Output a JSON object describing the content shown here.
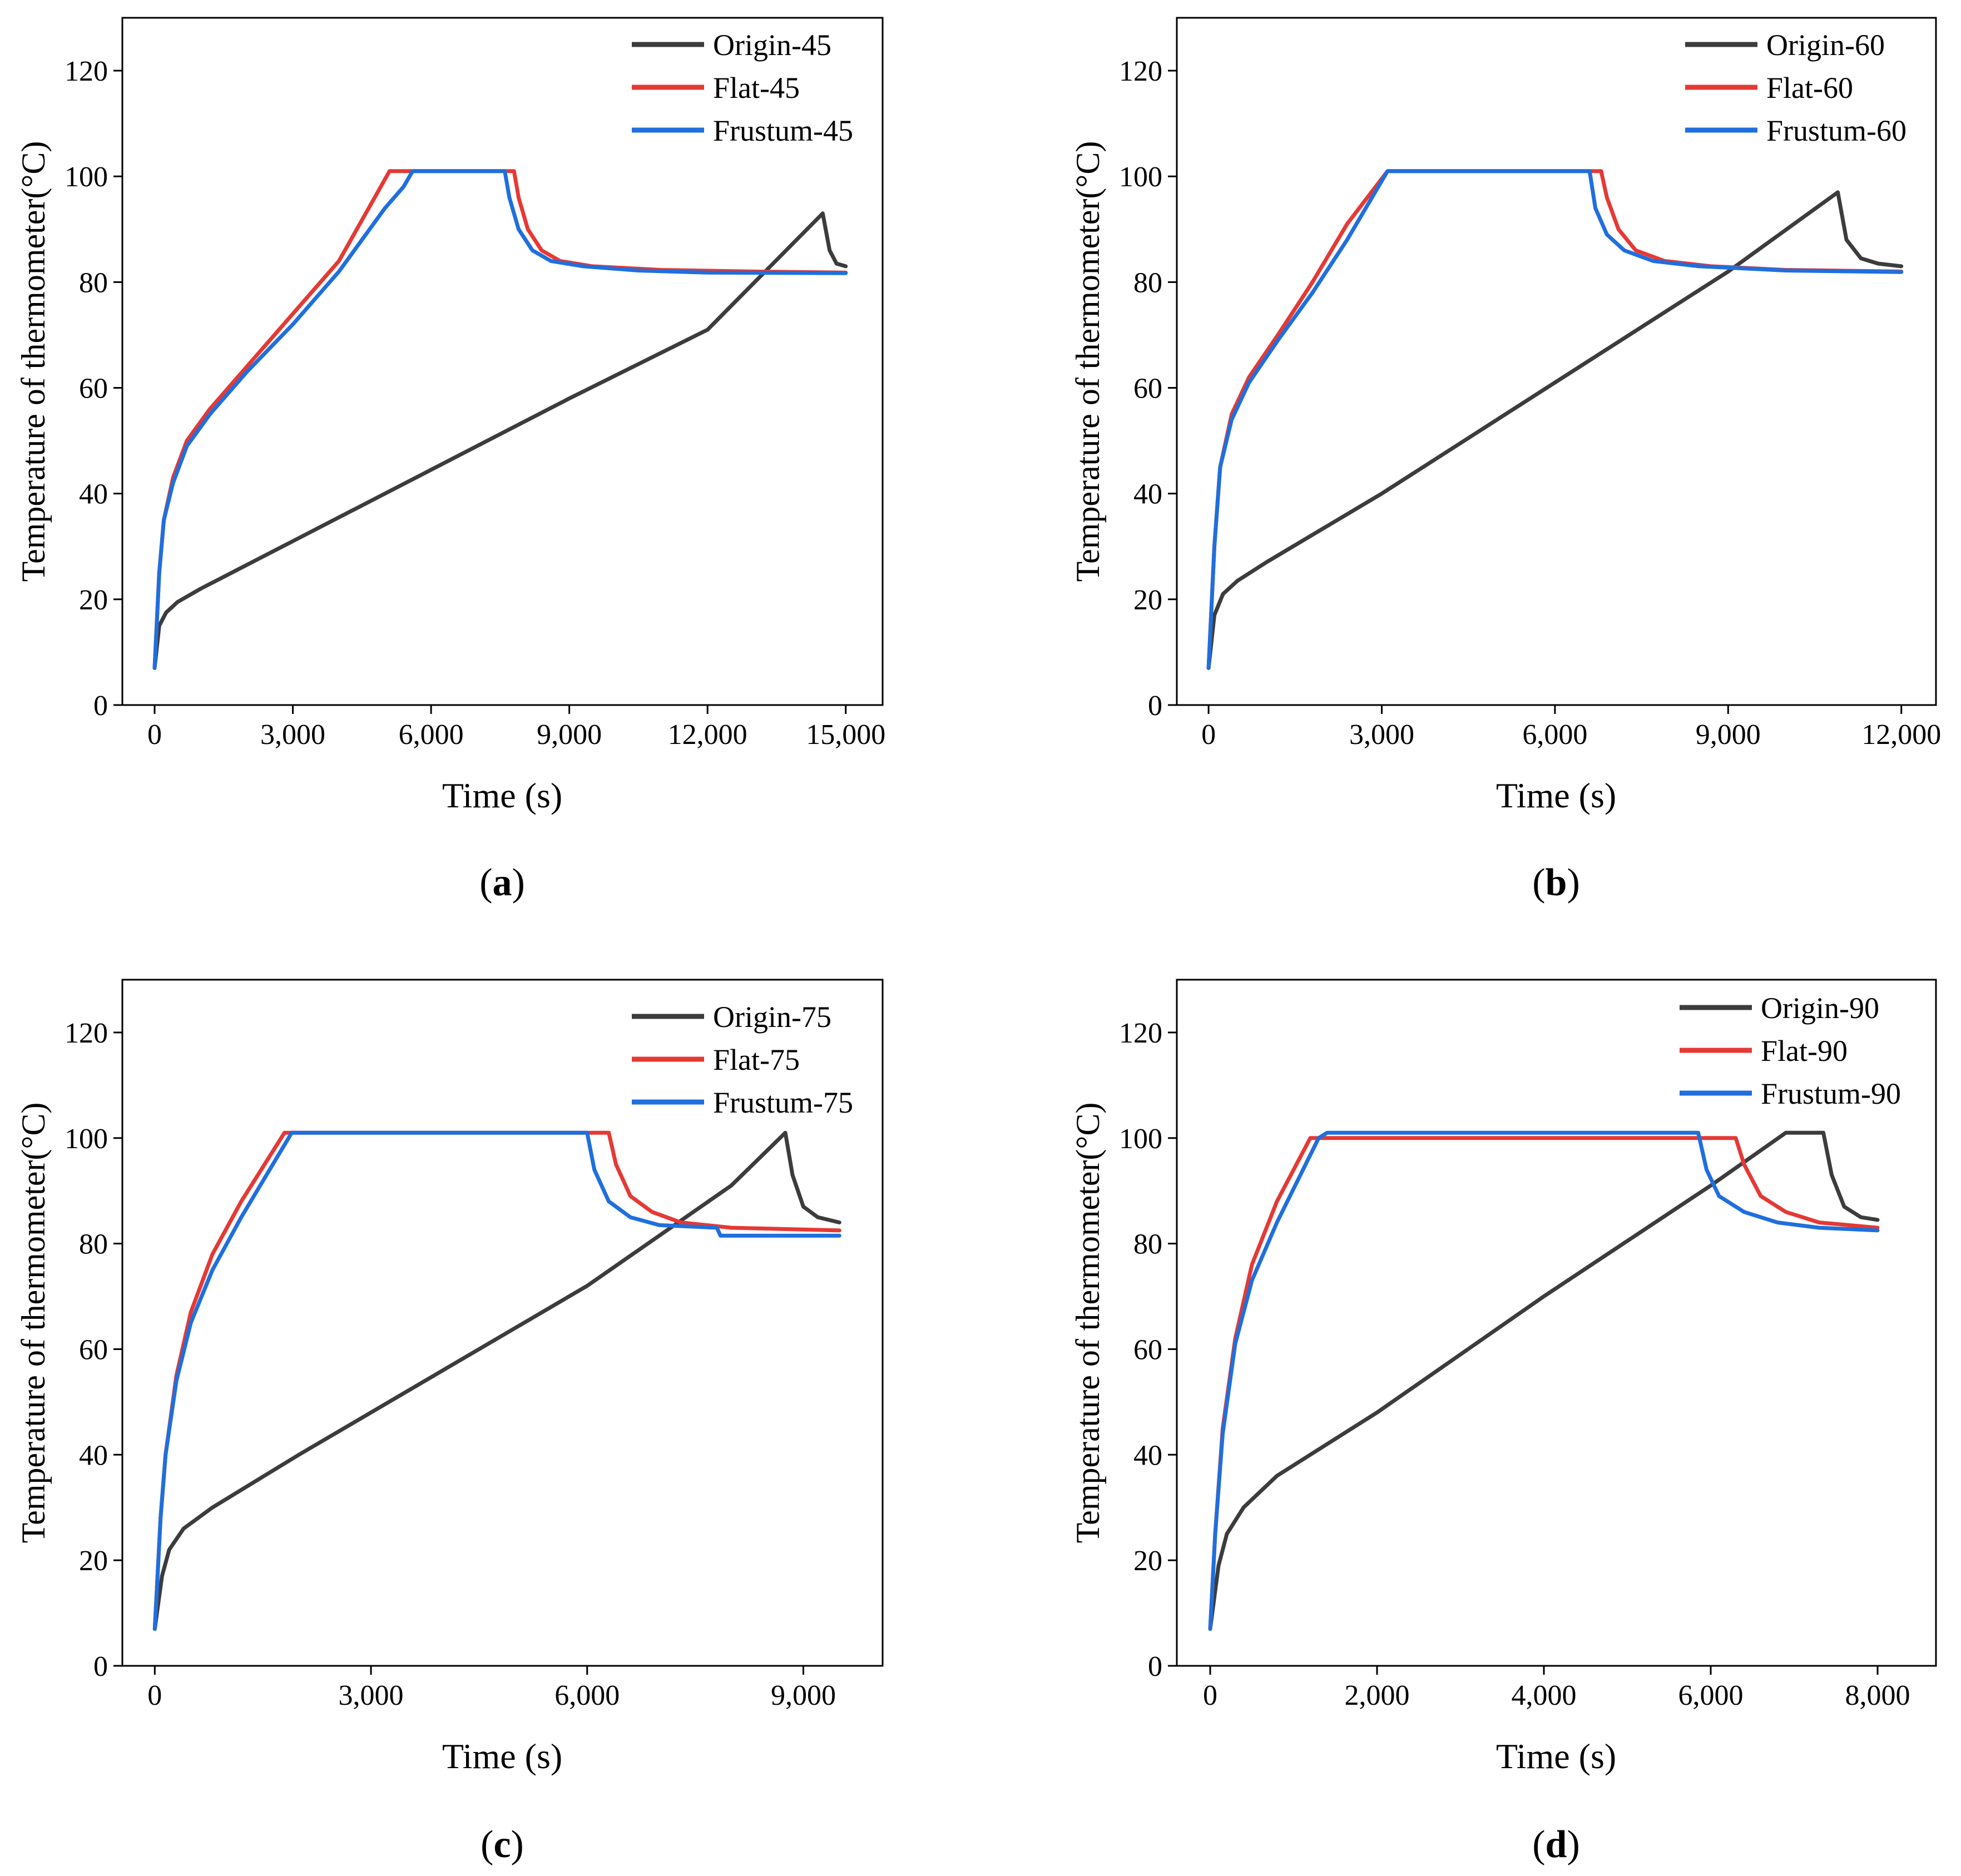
{
  "chart_data": [
    {
      "panel_label": "a",
      "type": "line",
      "xlabel": "Time (s)",
      "ylabel": "Temperature of thermometer(°C)",
      "xlim": [
        -700,
        15800
      ],
      "ylim": [
        0,
        130
      ],
      "xticks": [
        0,
        3000,
        6000,
        9000,
        12000,
        15000
      ],
      "xtick_labels": [
        "0",
        "3,000",
        "6,000",
        "9,000",
        "12,000",
        "15,000"
      ],
      "yticks": [
        0,
        20,
        40,
        60,
        80,
        100,
        120
      ],
      "ytick_labels": [
        "0",
        "20",
        "40",
        "60",
        "80",
        "100",
        "120"
      ],
      "legend_position": "top-right",
      "series": [
        {
          "name": "Origin-45",
          "color": "#3c3c3c",
          "x": [
            0,
            100,
            250,
            500,
            1000,
            3000,
            6000,
            9000,
            12000,
            14500,
            14650,
            14800,
            15000
          ],
          "y": [
            7,
            15,
            17.5,
            19.5,
            22,
            31,
            44.5,
            58,
            71,
            93,
            86,
            83.5,
            83
          ]
        },
        {
          "name": "Flat-45",
          "color": "#e53935",
          "x": [
            0,
            100,
            200,
            400,
            700,
            1200,
            2000,
            3000,
            4000,
            5100,
            5200,
            7800,
            7900,
            8100,
            8400,
            8800,
            9500,
            11000,
            13000,
            15000
          ],
          "y": [
            7,
            25,
            35,
            43,
            50,
            56,
            64,
            74,
            84,
            101,
            101,
            101,
            96,
            90,
            86,
            84,
            83,
            82.3,
            82,
            81.8
          ]
        },
        {
          "name": "Frustum-45",
          "color": "#1f6fde",
          "x": [
            0,
            100,
            200,
            400,
            700,
            1200,
            2000,
            3000,
            4000,
            5000,
            5400,
            5600,
            7600,
            7700,
            7900,
            8200,
            8600,
            9300,
            10500,
            12000,
            15000
          ],
          "y": [
            7,
            25,
            35,
            42,
            49,
            55,
            63,
            72,
            82,
            94,
            98,
            101,
            101,
            96,
            90,
            86,
            84,
            83,
            82.2,
            81.8,
            81.7
          ]
        }
      ]
    },
    {
      "panel_label": "b",
      "type": "line",
      "xlabel": "Time (s)",
      "ylabel": "Temperature of thermometer(°C)",
      "xlim": [
        -550,
        12600
      ],
      "ylim": [
        0,
        130
      ],
      "xticks": [
        0,
        3000,
        6000,
        9000,
        12000
      ],
      "xtick_labels": [
        "0",
        "3,000",
        "6,000",
        "9,000",
        "12,000"
      ],
      "yticks": [
        0,
        20,
        40,
        60,
        80,
        100,
        120
      ],
      "ytick_labels": [
        "0",
        "20",
        "40",
        "60",
        "80",
        "100",
        "120"
      ],
      "legend_position": "top-right",
      "series": [
        {
          "name": "Origin-60",
          "color": "#3c3c3c",
          "x": [
            0,
            100,
            250,
            500,
            1000,
            3000,
            6000,
            9000,
            10900,
            11050,
            11300,
            11600,
            12000
          ],
          "y": [
            7,
            17,
            21,
            23.5,
            27,
            40,
            61,
            82,
            97,
            88,
            84.5,
            83.5,
            83
          ]
        },
        {
          "name": "Flat-60",
          "color": "#e53935",
          "x": [
            0,
            100,
            200,
            400,
            700,
            1200,
            1800,
            2400,
            3100,
            3200,
            6800,
            6900,
            7100,
            7400,
            7900,
            8700,
            10000,
            12000
          ],
          "y": [
            7,
            30,
            45,
            55,
            62,
            70,
            80,
            91,
            101,
            101,
            101,
            96,
            90,
            86,
            84,
            83,
            82.3,
            82
          ]
        },
        {
          "name": "Frustum-60",
          "color": "#1f6fde",
          "x": [
            0,
            100,
            200,
            400,
            700,
            1200,
            1800,
            2400,
            3100,
            3200,
            6600,
            6700,
            6900,
            7200,
            7700,
            8500,
            10000,
            12000
          ],
          "y": [
            7,
            30,
            45,
            54,
            61,
            69,
            78,
            88,
            101,
            101,
            101,
            94,
            89,
            86,
            84,
            83,
            82.2,
            81.9
          ]
        }
      ]
    },
    {
      "panel_label": "c",
      "type": "line",
      "xlabel": "Time (s)",
      "ylabel": "Temperature of thermometer(°C)",
      "xlim": [
        -450,
        10100
      ],
      "ylim": [
        0,
        130
      ],
      "xticks": [
        0,
        3000,
        6000,
        9000
      ],
      "xtick_labels": [
        "0",
        "3,000",
        "6,000",
        "9,000"
      ],
      "yticks": [
        0,
        20,
        40,
        60,
        80,
        100,
        120
      ],
      "ytick_labels": [
        "0",
        "20",
        "40",
        "60",
        "80",
        "100",
        "120"
      ],
      "legend_position": "top-right",
      "series": [
        {
          "name": "Origin-75",
          "color": "#3c3c3c",
          "x": [
            0,
            100,
            200,
            400,
            800,
            2000,
            4000,
            6000,
            8000,
            8750,
            8850,
            9000,
            9200,
            9500
          ],
          "y": [
            7,
            17,
            22,
            26,
            30,
            40,
            56,
            72,
            91,
            101,
            93,
            87,
            85,
            84
          ]
        },
        {
          "name": "Flat-75",
          "color": "#e53935",
          "x": [
            0,
            80,
            150,
            300,
            500,
            800,
            1200,
            1800,
            1900,
            6300,
            6400,
            6600,
            6900,
            7300,
            8000,
            9500
          ],
          "y": [
            7,
            28,
            40,
            55,
            67,
            78,
            88,
            101,
            101,
            101,
            95,
            89,
            86,
            84,
            83,
            82.5
          ]
        },
        {
          "name": "Frustum-75",
          "color": "#1f6fde",
          "x": [
            0,
            80,
            150,
            300,
            500,
            800,
            1200,
            1900,
            2000,
            6000,
            6100,
            6300,
            6600,
            7000,
            7800,
            7850,
            9500
          ],
          "y": [
            7,
            28,
            40,
            54,
            65,
            75,
            85,
            101,
            101,
            101,
            94,
            88,
            85,
            83.5,
            83,
            81.5,
            81.5
          ]
        }
      ]
    },
    {
      "panel_label": "d",
      "type": "line",
      "xlabel": "Time (s)",
      "ylabel": "Temperature of thermometer(°C)",
      "xlim": [
        -400,
        8700
      ],
      "ylim": [
        0,
        130
      ],
      "xticks": [
        0,
        2000,
        4000,
        6000,
        8000
      ],
      "xtick_labels": [
        "0",
        "2,000",
        "4,000",
        "6,000",
        "8,000"
      ],
      "yticks": [
        0,
        20,
        40,
        60,
        80,
        100,
        120
      ],
      "ytick_labels": [
        "0",
        "20",
        "40",
        "60",
        "80",
        "100",
        "120"
      ],
      "legend_position": "top-right",
      "series": [
        {
          "name": "Origin-90",
          "color": "#3c3c3c",
          "x": [
            0,
            100,
            200,
            400,
            800,
            2000,
            4000,
            6000,
            6900,
            7000,
            7350,
            7450,
            7600,
            7800,
            8000
          ],
          "y": [
            7,
            19,
            25,
            30,
            36,
            48,
            70,
            91,
            101,
            101,
            101,
            93,
            87,
            85,
            84.5
          ]
        },
        {
          "name": "Flat-90",
          "color": "#e53935",
          "x": [
            0,
            60,
            150,
            300,
            500,
            800,
            1200,
            1300,
            6300,
            6400,
            6600,
            6900,
            7300,
            8000
          ],
          "y": [
            7,
            25,
            45,
            62,
            76,
            88,
            100,
            100,
            100,
            95,
            89,
            86,
            84,
            83
          ]
        },
        {
          "name": "Frustum-90",
          "color": "#1f6fde",
          "x": [
            0,
            60,
            150,
            300,
            500,
            800,
            1300,
            1400,
            5850,
            5950,
            6100,
            6400,
            6800,
            7300,
            8000
          ],
          "y": [
            7,
            25,
            44,
            61,
            73,
            84,
            100,
            101,
            101,
            94,
            89,
            86,
            84,
            83,
            82.5
          ]
        }
      ]
    }
  ]
}
